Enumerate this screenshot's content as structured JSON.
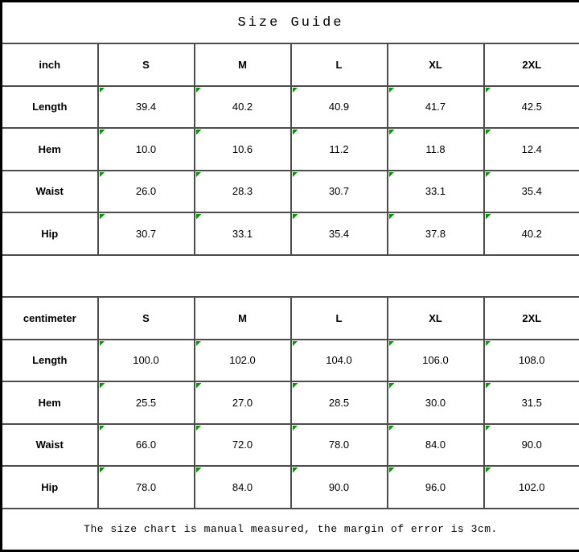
{
  "title": "Size Guide",
  "note": "The size chart is manual measured, the margin of error is 3cm.",
  "colors": {
    "flag_green": "#0f8f0f",
    "grid_line": "#4d4d4d",
    "outer_border": "#000000",
    "text": "#000000",
    "background": "#ffffff"
  },
  "chart_data": [
    {
      "type": "table",
      "title": "Size Guide",
      "unit": "inch",
      "columns": [
        "inch",
        "S",
        "M",
        "L",
        "XL",
        "2XL"
      ],
      "rows": [
        {
          "label": "Length",
          "values": [
            "39.4",
            "40.2",
            "40.9",
            "41.7",
            "42.5"
          ]
        },
        {
          "label": "Hem",
          "values": [
            "10.0",
            "10.6",
            "11.2",
            "11.8",
            "12.4"
          ]
        },
        {
          "label": "Waist",
          "values": [
            "26.0",
            "28.3",
            "30.7",
            "33.1",
            "35.4"
          ]
        },
        {
          "label": "Hip",
          "values": [
            "30.7",
            "33.1",
            "35.4",
            "37.8",
            "40.2"
          ]
        }
      ]
    },
    {
      "type": "table",
      "title": "Size Guide",
      "unit": "centimeter",
      "columns": [
        "centimeter",
        "S",
        "M",
        "L",
        "XL",
        "2XL"
      ],
      "rows": [
        {
          "label": "Length",
          "values": [
            "100.0",
            "102.0",
            "104.0",
            "106.0",
            "108.0"
          ]
        },
        {
          "label": "Hem",
          "values": [
            "25.5",
            "27.0",
            "28.5",
            "30.0",
            "31.5"
          ]
        },
        {
          "label": "Waist",
          "values": [
            "66.0",
            "72.0",
            "78.0",
            "84.0",
            "90.0"
          ]
        },
        {
          "label": "Hip",
          "values": [
            "78.0",
            "84.0",
            "90.0",
            "96.0",
            "102.0"
          ]
        }
      ]
    }
  ]
}
